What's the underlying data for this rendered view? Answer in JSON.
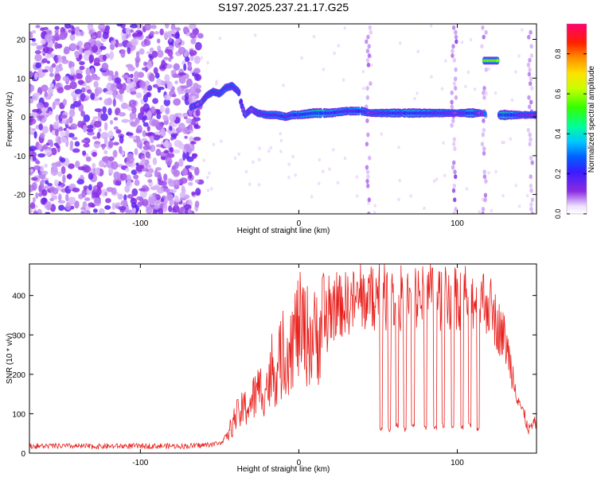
{
  "title": "S197.2025.237.21.17.G25",
  "chart_data": [
    {
      "type": "heatmap",
      "xlabel": "Height of straight line (km)",
      "ylabel": "Frequency (Hz)",
      "xlim": [
        -170,
        150
      ],
      "ylim": [
        -25,
        24
      ],
      "xticks": [
        -100,
        0,
        100
      ],
      "yticks": [
        -20,
        -10,
        0,
        10,
        20
      ],
      "colorbar": {
        "label": "Normalized spectral amplitude",
        "range": [
          0,
          0.95
        ],
        "ticks": [
          "0.0",
          "0.2",
          "0.4",
          "0.6",
          "0.8"
        ]
      },
      "features": {
        "noise_region_x": [
          -170,
          -62
        ],
        "ridge": {
          "x": [
            -68,
            -62,
            -58,
            -54,
            -50,
            -46,
            -42,
            -38,
            -36,
            -34,
            -30,
            -26,
            -20,
            -14,
            -8,
            -4,
            0,
            10,
            20,
            30,
            40,
            45,
            50,
            60,
            70,
            80,
            90,
            100,
            110,
            115,
            120,
            125,
            130,
            140,
            150
          ],
          "freq": [
            2.5,
            3.5,
            5.5,
            6.5,
            6.0,
            7.5,
            8.0,
            6.5,
            3.0,
            0.5,
            2.0,
            1.0,
            0.5,
            0.5,
            0.0,
            0.5,
            0.5,
            1.0,
            1.0,
            1.5,
            1.5,
            1.0,
            1.0,
            1.0,
            1.0,
            1.0,
            1.0,
            1.0,
            1.0,
            1.0,
            0.5,
            0.5,
            0.5,
            0.5,
            0.5
          ],
          "amplitude": [
            0.4,
            0.35,
            0.45,
            0.5,
            0.5,
            0.55,
            0.5,
            0.45,
            0.3,
            0.4,
            0.4,
            0.45,
            0.55,
            0.6,
            0.55,
            0.6,
            0.6,
            0.85,
            0.7,
            0.6,
            0.65,
            0.4,
            0.5,
            0.65,
            0.7,
            0.65,
            0.55,
            0.4,
            0.8,
            0.3,
            0.0,
            0.45,
            0.9,
            0.5,
            0.45
          ]
        },
        "gaps_x": [
          [
            118,
            126
          ]
        ],
        "side_blob": {
          "x": [
            117,
            126
          ],
          "freq": 14.5,
          "amplitude": 0.6
        },
        "vertical_streaks_x": [
          44,
          98,
          117,
          146
        ]
      }
    },
    {
      "type": "line",
      "xlabel": "Height of straight line (km)",
      "ylabel": "SNR (10 * v/v)",
      "xlim": [
        -170,
        150
      ],
      "ylim": [
        0,
        480
      ],
      "xticks": [
        -100,
        0,
        100
      ],
      "yticks": [
        0,
        100,
        200,
        300,
        400
      ],
      "series": [
        {
          "name": "SNR",
          "x": [
            -170,
            -150,
            -130,
            -110,
            -90,
            -70,
            -60,
            -50,
            -45,
            -40,
            -35,
            -30,
            -25,
            -20,
            -15,
            -10,
            -5,
            0,
            5,
            10,
            15,
            20,
            25,
            30,
            40,
            50,
            60,
            70,
            80,
            90,
            100,
            110,
            115,
            120,
            125,
            130,
            135,
            140,
            145,
            150
          ],
          "values": [
            18,
            18,
            17,
            18,
            18,
            18,
            20,
            25,
            45,
            90,
            110,
            130,
            160,
            170,
            210,
            240,
            280,
            320,
            300,
            290,
            330,
            360,
            370,
            380,
            390,
            395,
            390,
            395,
            398,
            395,
            400,
            395,
            392,
            380,
            330,
            290,
            200,
            120,
            60,
            80
          ],
          "dropouts": [
            {
              "x": 52,
              "value": 60
            },
            {
              "x": 57,
              "value": 60
            },
            {
              "x": 62,
              "value": 70
            },
            {
              "x": 67,
              "value": 60
            },
            {
              "x": 72,
              "value": 70
            },
            {
              "x": 80,
              "value": 65
            },
            {
              "x": 86,
              "value": 65
            },
            {
              "x": 91,
              "value": 70
            },
            {
              "x": 97,
              "value": 70
            },
            {
              "x": 103,
              "value": 65
            },
            {
              "x": 108,
              "value": 70
            },
            {
              "x": 113,
              "value": 60
            }
          ]
        }
      ]
    }
  ]
}
